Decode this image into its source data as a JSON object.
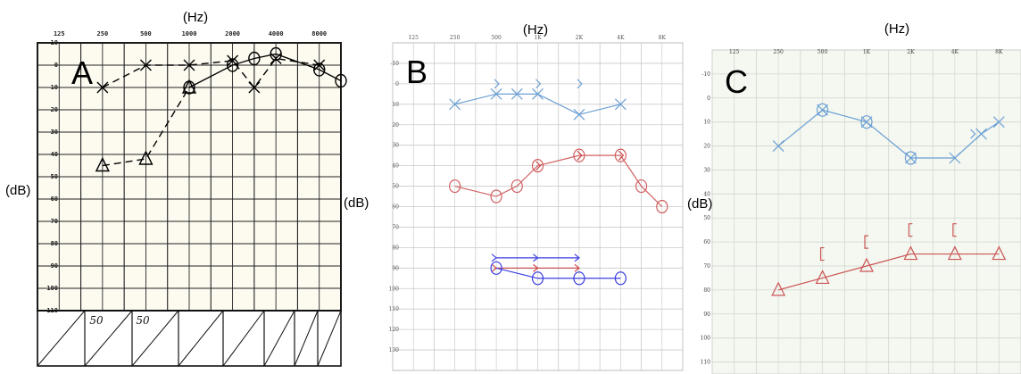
{
  "chart_data": [
    {
      "type": "line",
      "panel": "A",
      "panel_label": "A",
      "xlabel": "(Hz)",
      "ylabel": "(dB)",
      "x_ticks": [
        "125",
        "250",
        "500",
        "1000",
        "2000",
        "4000",
        "8000"
      ],
      "y_ticks": [
        "-10",
        "0",
        "10",
        "20",
        "30",
        "40",
        "50",
        "60",
        "70",
        "80",
        "90",
        "100",
        "110"
      ],
      "ylim": [
        -10,
        110
      ],
      "grid": true,
      "background": "#fdfaf0",
      "series": [
        {
          "symbol": "X",
          "line": "dashed",
          "color": "#000000",
          "points": [
            [
              1,
              10
            ],
            [
              2,
              0
            ],
            [
              3,
              0
            ],
            [
              4,
              -2
            ],
            [
              4.5,
              10
            ],
            [
              5,
              -3
            ],
            [
              6,
              0
            ]
          ]
        },
        {
          "symbol": "O",
          "line": "solid",
          "color": "#000000",
          "points": [
            [
              3,
              10
            ],
            [
              4,
              0
            ],
            [
              4.5,
              -3
            ],
            [
              5,
              -5
            ],
            [
              6,
              2
            ],
            [
              6.5,
              7
            ]
          ]
        },
        {
          "symbol": "triangle",
          "line": "dashed",
          "color": "#000000",
          "points": [
            [
              1,
              45
            ],
            [
              2,
              42
            ],
            [
              3,
              10
            ]
          ]
        }
      ],
      "table_entries": [
        "50",
        "50"
      ]
    },
    {
      "type": "line",
      "panel": "B",
      "panel_label": "B",
      "xlabel": "(Hz)",
      "ylabel": "(dB)",
      "x_ticks": [
        "125",
        "250",
        "500",
        "1K",
        "2K",
        "4K",
        "8K"
      ],
      "y_ticks": [
        "-10",
        "0",
        "10",
        "20",
        "30",
        "40",
        "50",
        "60",
        "70",
        "80",
        "90",
        "100",
        "110",
        "120",
        "130"
      ],
      "ylim": [
        -20,
        140
      ],
      "grid": true,
      "background": "#ffffff",
      "series": [
        {
          "symbol": "X",
          "line": "solid",
          "color": "#6b9fd4",
          "points": [
            [
              1,
              10
            ],
            [
              2,
              5
            ],
            [
              2.5,
              5
            ],
            [
              3,
              5
            ],
            [
              4,
              15
            ],
            [
              5,
              10
            ]
          ]
        },
        {
          "symbol": ">",
          "line": "none",
          "color": "#6b9fd4",
          "points": [
            [
              2,
              0
            ],
            [
              3,
              0
            ],
            [
              4,
              0
            ]
          ]
        },
        {
          "symbol": "O",
          "line": "solid",
          "color": "#d06060",
          "points": [
            [
              1,
              50
            ],
            [
              2,
              55
            ],
            [
              2.5,
              50
            ],
            [
              3,
              40
            ],
            [
              4,
              35
            ],
            [
              5,
              35
            ],
            [
              5.5,
              50
            ],
            [
              6,
              60
            ]
          ]
        },
        {
          "symbol": ">",
          "line": "none",
          "color": "#cc4444",
          "points": [
            [
              3,
              40
            ],
            [
              4,
              35
            ],
            [
              5,
              35
            ]
          ]
        },
        {
          "symbol": "arrow",
          "line": "solid",
          "color": "#3b3fe0",
          "points": [
            [
              2,
              85
            ],
            [
              3,
              85
            ],
            [
              4,
              85
            ]
          ]
        },
        {
          "symbol": "arrow",
          "line": "solid",
          "color": "#cc4444",
          "points": [
            [
              2,
              90
            ],
            [
              3,
              90
            ],
            [
              4,
              90
            ]
          ]
        },
        {
          "symbol": "O",
          "line": "solid",
          "color": "#3b3fe0",
          "points": [
            [
              2,
              90
            ],
            [
              3,
              95
            ],
            [
              4,
              95
            ],
            [
              5,
              95
            ]
          ]
        }
      ]
    },
    {
      "type": "line",
      "panel": "C",
      "panel_label": "C",
      "xlabel": "(Hz)",
      "ylabel": "(dB)",
      "x_ticks": [
        "125",
        "250",
        "500",
        "1K",
        "2K",
        "4K",
        "8K"
      ],
      "y_ticks": [
        "-10",
        "0",
        "10",
        "20",
        "30",
        "40",
        "50",
        "60",
        "70",
        "80",
        "90",
        "100",
        "110"
      ],
      "ylim": [
        -20,
        115
      ],
      "grid": true,
      "background": "#f4f8f1",
      "series": [
        {
          "symbol": "X",
          "line": "solid",
          "color": "#6b9fd4",
          "points": [
            [
              1,
              20
            ],
            [
              2,
              5
            ],
            [
              3,
              10
            ],
            [
              4,
              25
            ],
            [
              5,
              25
            ],
            [
              5.6,
              15
            ],
            [
              6,
              10
            ]
          ]
        },
        {
          "symbol": "O",
          "line": "none",
          "color": "#6b9fd4",
          "points": [
            [
              2,
              5
            ],
            [
              3,
              10
            ],
            [
              4,
              25
            ]
          ]
        },
        {
          "symbol": ">",
          "line": "none",
          "color": "#6b9fd4",
          "points": [
            [
              5.4,
              15
            ]
          ]
        },
        {
          "symbol": "triangle",
          "line": "solid",
          "color": "#cc5555",
          "points": [
            [
              1,
              80
            ],
            [
              2,
              75
            ],
            [
              3,
              70
            ],
            [
              4,
              65
            ],
            [
              5,
              65
            ],
            [
              6,
              65
            ]
          ]
        },
        {
          "symbol": "[",
          "line": "none",
          "color": "#cc5555",
          "points": [
            [
              2,
              65
            ],
            [
              3,
              60
            ],
            [
              4,
              55
            ],
            [
              5,
              55
            ]
          ]
        }
      ]
    }
  ]
}
